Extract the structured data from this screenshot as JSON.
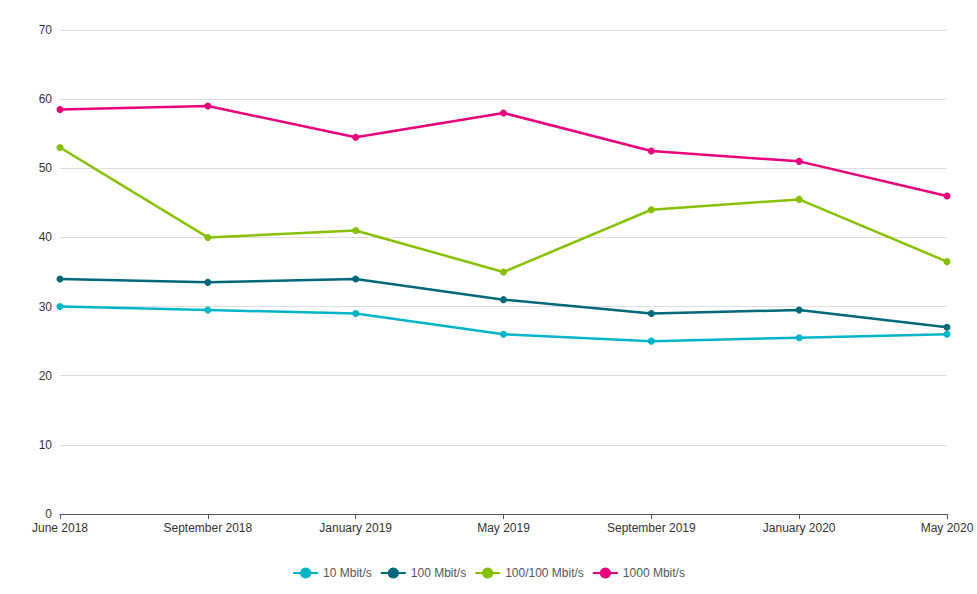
{
  "chart_data": {
    "type": "line",
    "categories": [
      "June 2018",
      "September 2018",
      "January 2019",
      "May 2019",
      "September 2019",
      "January 2020",
      "May 2020"
    ],
    "series": [
      {
        "name": "10 Mbit/s",
        "color": "#00B4C8",
        "values": [
          30,
          29.5,
          29,
          26,
          25,
          25.5,
          26
        ]
      },
      {
        "name": "100 Mbit/s",
        "color": "#006878",
        "values": [
          34,
          33.5,
          34,
          31,
          29,
          29.5,
          27
        ]
      },
      {
        "name": "100/100 Mbit/s",
        "color": "#88C000",
        "values": [
          53,
          40,
          41,
          35,
          44,
          45.5,
          36.5
        ]
      },
      {
        "name": "1000 Mbit/s",
        "color": "#E8007D",
        "values": [
          58.5,
          59,
          54.5,
          58,
          52.5,
          51,
          46
        ]
      }
    ],
    "ylim": [
      0,
      70
    ],
    "yticks": [
      0,
      10,
      20,
      30,
      40,
      50,
      60,
      70
    ],
    "grid": true,
    "legend": "bottom",
    "marker": "circle"
  }
}
